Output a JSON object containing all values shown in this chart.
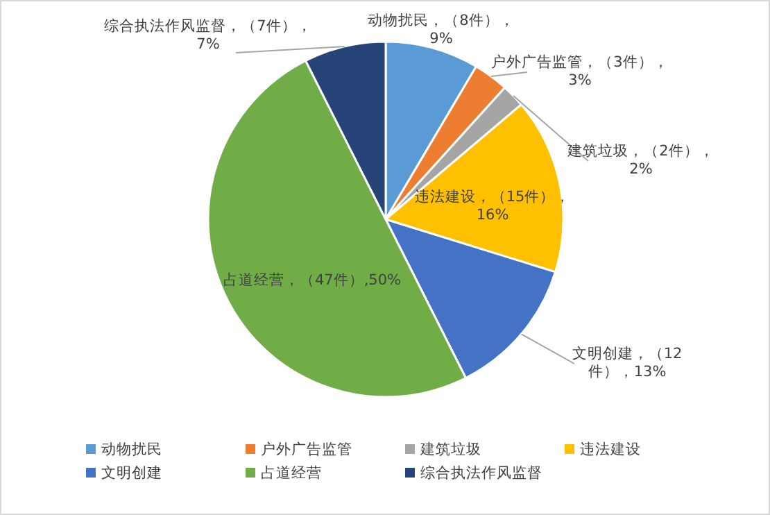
{
  "chart_data": {
    "type": "pie",
    "categories": [
      "动物扰民",
      "户外广告监管",
      "建筑垃圾",
      "违法建设",
      "文明创建",
      "占道经营",
      "综合执法作风监督"
    ],
    "values": [
      8,
      3,
      2,
      15,
      12,
      47,
      7
    ],
    "colors": [
      "#5b9bd5",
      "#ed7d31",
      "#a5a5a5",
      "#ffc000",
      "#4472c4",
      "#70ad47",
      "#264478"
    ],
    "value_labels": [
      "动物扰民，（8件），\n9%",
      "户外广告监管，（3件），\n3%",
      "建筑垃圾，（2件），\n2%",
      "违法建设，（15件），\n16%",
      "文明创建，（12\n件），13%",
      "占道经营，（47件）,50%",
      "综合执法作风监督，（7件），\n7%"
    ],
    "legend": "bottom"
  }
}
